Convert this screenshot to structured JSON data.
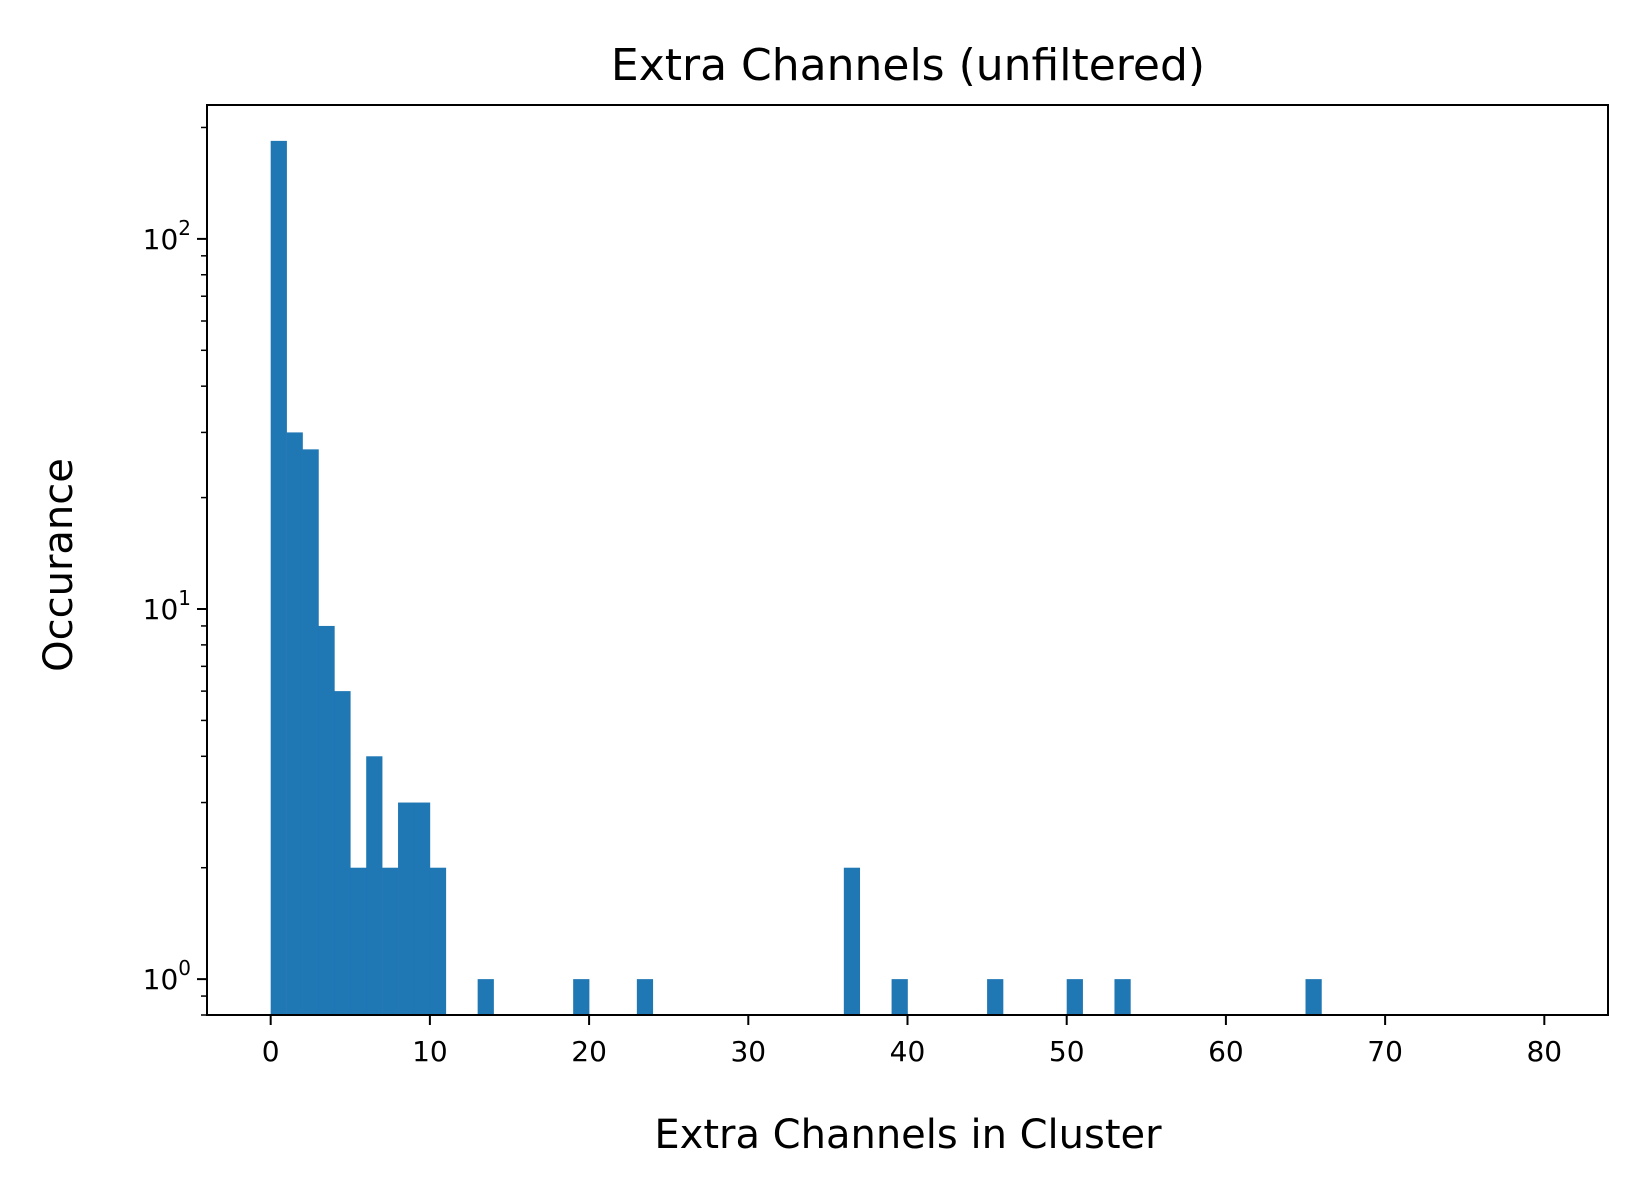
{
  "chart_data": {
    "type": "bar",
    "title": "Extra Channels (unfiltered)",
    "xlabel": "Extra Channels in Cluster",
    "ylabel": "Occurance",
    "yscale": "log",
    "xlim": [
      -4,
      84
    ],
    "ylim": [
      0.8,
      230
    ],
    "bin_width": 1,
    "bar_color": "#1f77b4",
    "x_ticks": [
      0,
      10,
      20,
      30,
      40,
      50,
      60,
      70,
      80
    ],
    "x_tick_labels": [
      "0",
      "10",
      "20",
      "30",
      "40",
      "50",
      "60",
      "70",
      "80"
    ],
    "y_ticks": [
      {
        "value": 1,
        "base": "10",
        "exp": "0"
      },
      {
        "value": 10,
        "base": "10",
        "exp": "1"
      },
      {
        "value": 100,
        "base": "10",
        "exp": "2"
      }
    ],
    "grid": false,
    "bins": [
      {
        "x": 0,
        "count": 184
      },
      {
        "x": 1,
        "count": 30
      },
      {
        "x": 2,
        "count": 27
      },
      {
        "x": 3,
        "count": 9
      },
      {
        "x": 4,
        "count": 6
      },
      {
        "x": 5,
        "count": 2
      },
      {
        "x": 6,
        "count": 4
      },
      {
        "x": 7,
        "count": 2
      },
      {
        "x": 8,
        "count": 3
      },
      {
        "x": 9,
        "count": 3
      },
      {
        "x": 10,
        "count": 2
      },
      {
        "x": 13,
        "count": 1
      },
      {
        "x": 19,
        "count": 1
      },
      {
        "x": 23,
        "count": 1
      },
      {
        "x": 36,
        "count": 2
      },
      {
        "x": 39,
        "count": 1
      },
      {
        "x": 45,
        "count": 1
      },
      {
        "x": 50,
        "count": 1
      },
      {
        "x": 53,
        "count": 1
      },
      {
        "x": 65,
        "count": 1
      }
    ]
  }
}
